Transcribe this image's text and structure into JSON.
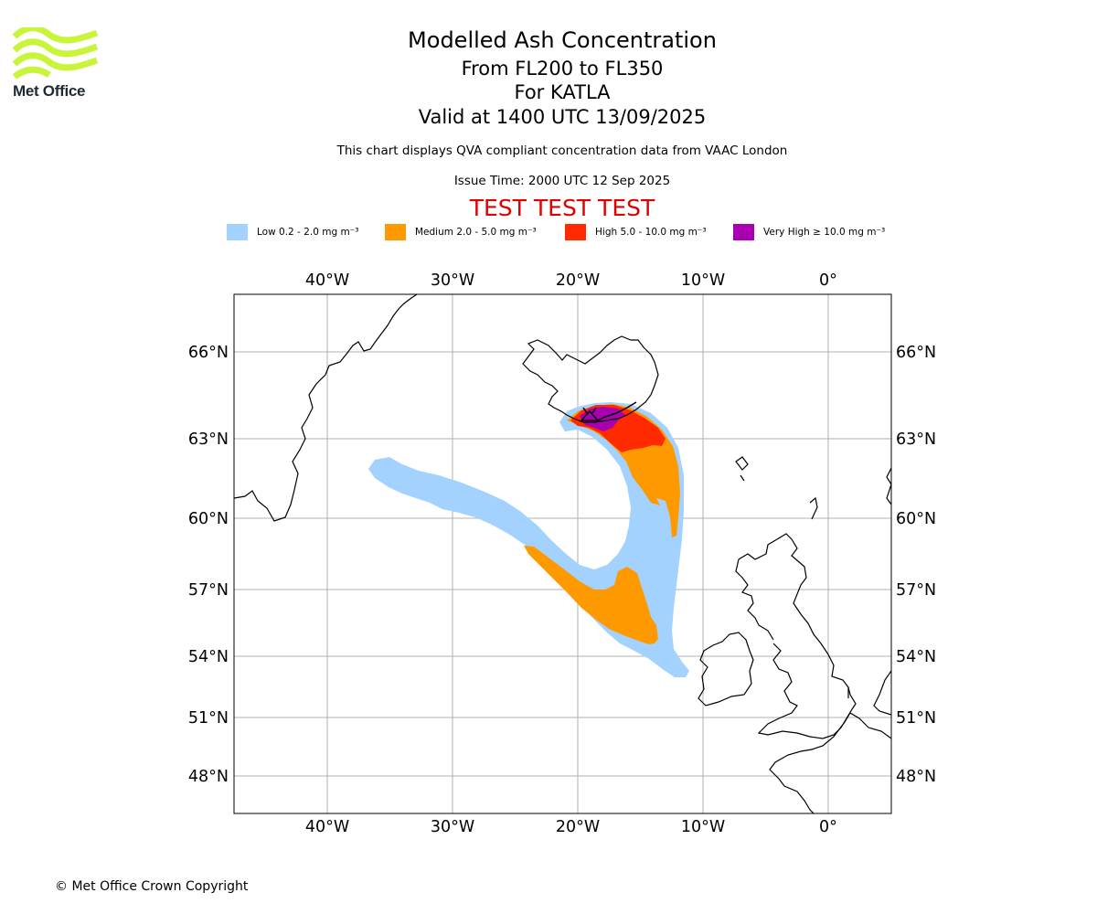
{
  "logo": {
    "text": "Met Office"
  },
  "title": {
    "main": "Modelled Ash Concentration",
    "level": "From FL200 to FL350",
    "volcano": "For KATLA",
    "valid": "Valid at 1400 UTC 13/09/2025",
    "note": "This chart displays QVA compliant concentration data from VAAC London",
    "issue": "Issue Time: 2000 UTC 12 Sep 2025",
    "test": "TEST TEST TEST"
  },
  "legend": [
    {
      "label": "Low 0.2 - 2.0 mg m⁻³",
      "color": "#a3d2ff"
    },
    {
      "label": "Medium 2.0 - 5.0 mg m⁻³",
      "color": "#ff9900"
    },
    {
      "label": "High 5.0 - 10.0 mg m⁻³",
      "color": "#ff2a00"
    },
    {
      "label": "Very High  ≥  10.0 mg m⁻³",
      "color": "#a800b0"
    }
  ],
  "map": {
    "lon_labels": [
      "40°W",
      "30°W",
      "20°W",
      "10°W",
      "0°"
    ],
    "lat_labels": [
      "66°N",
      "63°N",
      "60°N",
      "57°N",
      "54°N",
      "51°N",
      "48°N"
    ],
    "gridline_color": "#b0b0b0",
    "coast_color": "#000000"
  },
  "copyright": "© Met Office Crown Copyright"
}
